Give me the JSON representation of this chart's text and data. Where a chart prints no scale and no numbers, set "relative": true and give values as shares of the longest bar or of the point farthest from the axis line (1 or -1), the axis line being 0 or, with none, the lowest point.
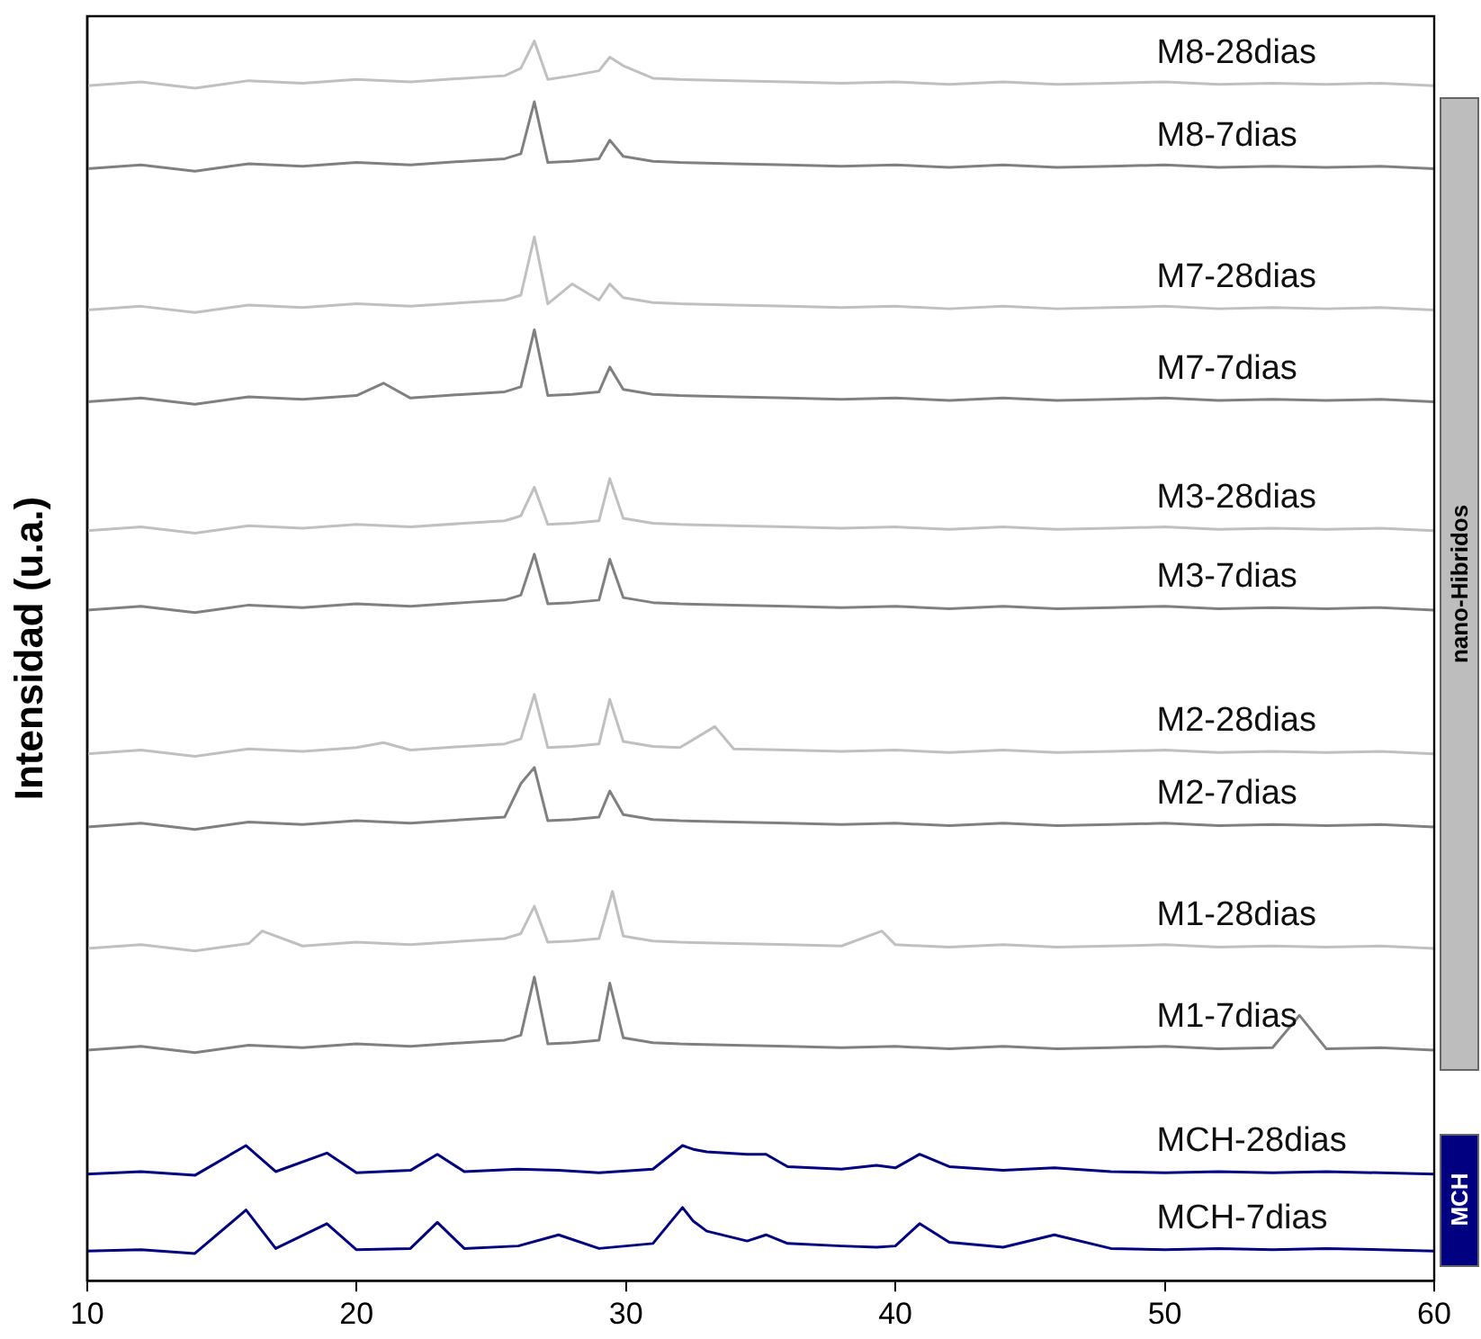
{
  "chart_data": {
    "type": "line",
    "relative": true,
    "ylabel": "Intensidad (u.a.)",
    "xlim": [
      10,
      60
    ],
    "xticks": [
      10,
      20,
      30,
      40,
      50,
      60
    ],
    "marker": "none",
    "line_style": "solid",
    "annotations": [
      "nano-Hibridos",
      "MCH"
    ],
    "series": [
      {
        "name": "M8-28dias",
        "color": "#c0c0c0",
        "x": [
          10,
          12,
          14,
          16,
          18,
          20,
          22,
          24,
          25.5,
          26.1,
          26.6,
          27.1,
          28,
          29,
          29.4,
          29.9,
          31,
          32,
          34,
          36,
          38,
          40,
          42,
          44,
          46,
          48,
          50,
          52,
          54,
          56,
          58,
          60
        ],
        "values": [
          0.964,
          0.967,
          0.962,
          0.968,
          0.966,
          0.969,
          0.967,
          0.97,
          0.972,
          0.978,
          1.0,
          0.969,
          0.972,
          0.976,
          0.987,
          0.98,
          0.97,
          0.969,
          0.968,
          0.967,
          0.966,
          0.967,
          0.965,
          0.967,
          0.965,
          0.966,
          0.967,
          0.965,
          0.966,
          0.965,
          0.966,
          0.964
        ]
      },
      {
        "name": "M8-7dias",
        "color": "#808080",
        "x": [
          10,
          12,
          14,
          16,
          18,
          20,
          22,
          24,
          25.5,
          26.1,
          26.6,
          27.1,
          28,
          29,
          29.4,
          29.9,
          31,
          32,
          34,
          36,
          38,
          40,
          42,
          44,
          46,
          48,
          50,
          52,
          54,
          56,
          58,
          60
        ],
        "values": [
          0.897,
          0.9,
          0.895,
          0.901,
          0.899,
          0.902,
          0.9,
          0.903,
          0.905,
          0.909,
          0.951,
          0.902,
          0.903,
          0.905,
          0.92,
          0.907,
          0.903,
          0.902,
          0.901,
          0.9,
          0.899,
          0.9,
          0.898,
          0.9,
          0.898,
          0.899,
          0.9,
          0.898,
          0.899,
          0.898,
          0.899,
          0.897
        ]
      },
      {
        "name": "M7-28dias",
        "color": "#c0c0c0",
        "x": [
          10,
          12,
          14,
          16,
          18,
          20,
          22,
          24,
          25.5,
          26.1,
          26.6,
          27.1,
          28,
          29,
          29.4,
          29.9,
          31,
          32,
          34,
          36,
          38,
          40,
          42,
          44,
          46,
          48,
          50,
          52,
          54,
          56,
          58,
          60
        ],
        "values": [
          0.783,
          0.786,
          0.781,
          0.787,
          0.785,
          0.788,
          0.786,
          0.789,
          0.791,
          0.795,
          0.842,
          0.788,
          0.804,
          0.791,
          0.804,
          0.793,
          0.789,
          0.788,
          0.787,
          0.786,
          0.785,
          0.786,
          0.784,
          0.786,
          0.784,
          0.785,
          0.786,
          0.784,
          0.785,
          0.784,
          0.785,
          0.783
        ]
      },
      {
        "name": "M7-7dias",
        "color": "#808080",
        "x": [
          10,
          12,
          14,
          16,
          18,
          20,
          21,
          22,
          24,
          25.5,
          26.1,
          26.6,
          27.1,
          28,
          29,
          29.4,
          29.9,
          31,
          32,
          34,
          36,
          38,
          40,
          42,
          44,
          46,
          48,
          50,
          52,
          54,
          56,
          58,
          60
        ],
        "values": [
          0.709,
          0.712,
          0.707,
          0.713,
          0.711,
          0.714,
          0.724,
          0.712,
          0.715,
          0.717,
          0.721,
          0.767,
          0.714,
          0.715,
          0.717,
          0.737,
          0.719,
          0.715,
          0.714,
          0.713,
          0.712,
          0.711,
          0.712,
          0.71,
          0.712,
          0.71,
          0.711,
          0.712,
          0.71,
          0.711,
          0.71,
          0.711,
          0.709
        ]
      },
      {
        "name": "M3-28dias",
        "color": "#c0c0c0",
        "x": [
          10,
          12,
          14,
          16,
          18,
          20,
          22,
          24,
          25.5,
          26.1,
          26.6,
          27.1,
          28,
          29,
          29.4,
          29.9,
          31,
          32,
          34,
          36,
          38,
          40,
          42,
          44,
          46,
          48,
          50,
          52,
          54,
          56,
          58,
          60
        ],
        "values": [
          0.605,
          0.608,
          0.603,
          0.609,
          0.607,
          0.61,
          0.608,
          0.611,
          0.613,
          0.617,
          0.64,
          0.61,
          0.611,
          0.613,
          0.647,
          0.615,
          0.611,
          0.61,
          0.609,
          0.608,
          0.607,
          0.608,
          0.606,
          0.608,
          0.606,
          0.607,
          0.608,
          0.606,
          0.607,
          0.606,
          0.607,
          0.605
        ]
      },
      {
        "name": "M3-7dias",
        "color": "#808080",
        "x": [
          10,
          12,
          14,
          16,
          18,
          20,
          22,
          24,
          25.5,
          26.1,
          26.6,
          27.1,
          28,
          29,
          29.4,
          29.9,
          31,
          32,
          34,
          36,
          38,
          40,
          42,
          44,
          46,
          48,
          50,
          52,
          54,
          56,
          58,
          60
        ],
        "values": [
          0.541,
          0.544,
          0.539,
          0.545,
          0.543,
          0.546,
          0.544,
          0.547,
          0.549,
          0.553,
          0.586,
          0.546,
          0.547,
          0.549,
          0.582,
          0.551,
          0.547,
          0.546,
          0.545,
          0.544,
          0.543,
          0.544,
          0.542,
          0.544,
          0.542,
          0.543,
          0.544,
          0.542,
          0.543,
          0.542,
          0.543,
          0.541
        ]
      },
      {
        "name": "M2-28dias",
        "color": "#c0c0c0",
        "x": [
          10,
          12,
          14,
          16,
          18,
          20,
          21,
          22,
          24,
          25.5,
          26.1,
          26.6,
          27.1,
          28,
          29,
          29.4,
          29.9,
          31,
          32,
          33.3,
          34,
          36,
          38,
          40,
          42,
          44,
          46,
          48,
          50,
          52,
          54,
          56,
          58,
          60
        ],
        "values": [
          0.425,
          0.428,
          0.423,
          0.429,
          0.427,
          0.43,
          0.434,
          0.428,
          0.431,
          0.433,
          0.437,
          0.473,
          0.43,
          0.431,
          0.433,
          0.469,
          0.435,
          0.431,
          0.43,
          0.447,
          0.429,
          0.428,
          0.427,
          0.428,
          0.426,
          0.428,
          0.426,
          0.427,
          0.428,
          0.426,
          0.427,
          0.426,
          0.427,
          0.425
        ]
      },
      {
        "name": "M2-7dias",
        "color": "#808080",
        "x": [
          10,
          12,
          14,
          16,
          18,
          20,
          22,
          24,
          25.5,
          26.1,
          26.6,
          27.1,
          28,
          29,
          29.4,
          29.9,
          31,
          32,
          34,
          36,
          38,
          40,
          42,
          44,
          46,
          48,
          50,
          52,
          54,
          56,
          58,
          60
        ],
        "values": [
          0.366,
          0.369,
          0.364,
          0.37,
          0.368,
          0.371,
          0.369,
          0.372,
          0.374,
          0.401,
          0.414,
          0.371,
          0.372,
          0.374,
          0.395,
          0.376,
          0.372,
          0.371,
          0.37,
          0.369,
          0.368,
          0.369,
          0.367,
          0.369,
          0.367,
          0.368,
          0.369,
          0.367,
          0.368,
          0.367,
          0.368,
          0.366
        ]
      },
      {
        "name": "M1-28dias",
        "color": "#c0c0c0",
        "x": [
          10,
          12,
          14,
          16,
          16.5,
          18,
          20,
          22,
          24,
          25.5,
          26.1,
          26.6,
          27.1,
          28,
          29,
          29.5,
          29.9,
          31,
          32,
          34,
          36,
          38,
          39.5,
          40,
          42,
          44,
          46,
          48,
          50,
          52,
          54,
          56,
          58,
          60
        ],
        "values": [
          0.268,
          0.271,
          0.266,
          0.272,
          0.282,
          0.27,
          0.273,
          0.271,
          0.274,
          0.276,
          0.28,
          0.302,
          0.273,
          0.274,
          0.276,
          0.314,
          0.278,
          0.274,
          0.273,
          0.272,
          0.271,
          0.27,
          0.282,
          0.271,
          0.269,
          0.271,
          0.269,
          0.27,
          0.271,
          0.269,
          0.27,
          0.269,
          0.27,
          0.268
        ]
      },
      {
        "name": "M1-7dias",
        "color": "#808080",
        "x": [
          10,
          12,
          14,
          16,
          18,
          20,
          22,
          24,
          25.5,
          26.1,
          26.6,
          27.1,
          28,
          29,
          29.4,
          29.9,
          31,
          32,
          34,
          36,
          38,
          40,
          42,
          44,
          46,
          48,
          50,
          52,
          54,
          55,
          56,
          58,
          60
        ],
        "values": [
          0.186,
          0.189,
          0.184,
          0.19,
          0.188,
          0.191,
          0.189,
          0.192,
          0.194,
          0.198,
          0.245,
          0.191,
          0.192,
          0.194,
          0.24,
          0.196,
          0.192,
          0.191,
          0.19,
          0.189,
          0.188,
          0.189,
          0.187,
          0.189,
          0.187,
          0.188,
          0.189,
          0.187,
          0.188,
          0.214,
          0.187,
          0.188,
          0.186
        ]
      },
      {
        "name": "MCH-28dias",
        "color": "#000080",
        "x": [
          10,
          12,
          14,
          15.9,
          17,
          18.9,
          20,
          22,
          23,
          24,
          26,
          27.5,
          29,
          31,
          32.1,
          32.5,
          33,
          34.5,
          35.2,
          36,
          38,
          39.3,
          40,
          40.9,
          42,
          44,
          45.9,
          48,
          50,
          52,
          54,
          56,
          58,
          60
        ],
        "values": [
          0.086,
          0.088,
          0.085,
          0.109,
          0.088,
          0.103,
          0.087,
          0.089,
          0.102,
          0.088,
          0.09,
          0.089,
          0.087,
          0.09,
          0.109,
          0.106,
          0.104,
          0.102,
          0.102,
          0.092,
          0.09,
          0.093,
          0.091,
          0.102,
          0.092,
          0.089,
          0.091,
          0.088,
          0.087,
          0.088,
          0.087,
          0.088,
          0.087,
          0.086
        ]
      },
      {
        "name": "MCH-7dias",
        "color": "#000080",
        "x": [
          10,
          12,
          14,
          15.9,
          17,
          18.9,
          20,
          22,
          23,
          24,
          26,
          27.5,
          29,
          31,
          32.1,
          32.5,
          33,
          34.5,
          35.2,
          36,
          38,
          39.3,
          40,
          40.9,
          42,
          44,
          45.9,
          48,
          50,
          52,
          54,
          56,
          58,
          60
        ],
        "values": [
          0.024,
          0.025,
          0.022,
          0.057,
          0.026,
          0.046,
          0.025,
          0.026,
          0.047,
          0.026,
          0.028,
          0.037,
          0.026,
          0.03,
          0.059,
          0.048,
          0.04,
          0.032,
          0.037,
          0.03,
          0.028,
          0.027,
          0.028,
          0.046,
          0.031,
          0.027,
          0.037,
          0.026,
          0.025,
          0.026,
          0.025,
          0.026,
          0.025,
          0.024
        ]
      }
    ]
  }
}
